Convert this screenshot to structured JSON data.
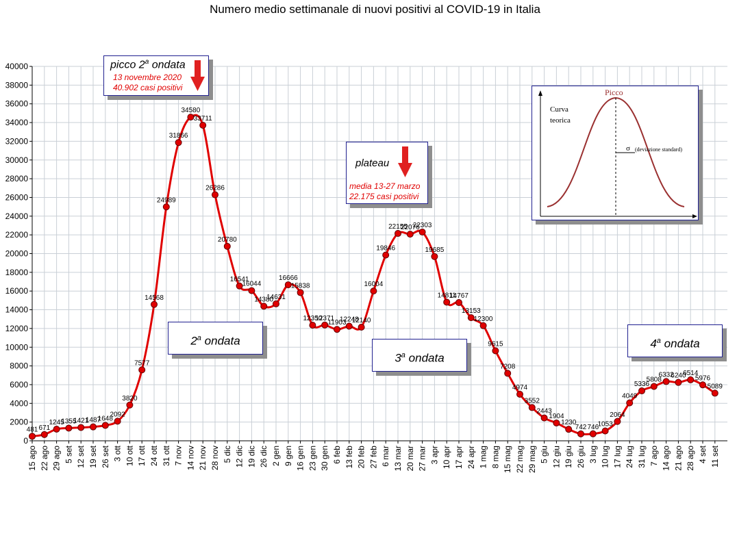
{
  "chart_data": {
    "type": "line",
    "title": "Numero medio settimanale di nuovi positivi al COVID-19 in Italia",
    "xlabel": "",
    "ylabel": "",
    "ylim": [
      0,
      40000
    ],
    "yticks": [
      0,
      2000,
      4000,
      6000,
      8000,
      10000,
      12000,
      14000,
      16000,
      18000,
      20000,
      22000,
      24000,
      26000,
      28000,
      30000,
      32000,
      34000,
      36000,
      38000,
      40000
    ],
    "grid": true,
    "series_color": "#e00000",
    "marker_color": "#e00000",
    "categories": [
      "15 ago",
      "22 ago",
      "29 ago",
      "5 set",
      "12 set",
      "19 set",
      "26 set",
      "3 ott",
      "10 ott",
      "17 ott",
      "24 ott",
      "31 ott",
      "7 nov",
      "14 nov",
      "21 nov",
      "28 nov",
      "5 dic",
      "12 dic",
      "19 dic",
      "26 dic",
      "2 gen",
      "9 gen",
      "16 gen",
      "23 gen",
      "30 gen",
      "6 feb",
      "13 feb",
      "20 feb",
      "27 feb",
      "6 mar",
      "13 mar",
      "20 mar",
      "27 mar",
      "3 apr",
      "10 apr",
      "17 apr",
      "24 apr",
      "1 mag",
      "8 mag",
      "15 mag",
      "22 mag",
      "29 mag",
      "5 giu",
      "12 giu",
      "19 giu",
      "26 giu",
      "3 lug",
      "10 lug",
      "17 lug",
      "24 lug",
      "31 lug",
      "7 ago",
      "14 ago",
      "21 ago",
      "28 ago",
      "4 set",
      "11 set"
    ],
    "values": [
      481,
      671,
      1245,
      1355,
      1421,
      1487,
      1648,
      2092,
      3820,
      7577,
      14568,
      24989,
      31866,
      34580,
      33711,
      26286,
      20780,
      16541,
      16044,
      14380,
      14631,
      16666,
      15838,
      12350,
      12371,
      11903,
      12248,
      12140,
      16004,
      19846,
      22155,
      22076,
      22303,
      19685,
      14811,
      14767,
      13153,
      12300,
      9615,
      7208,
      4974,
      3552,
      2443,
      1904,
      1230,
      742,
      746,
      1053,
      2064,
      4049,
      5336,
      5808,
      6332,
      6240,
      6514,
      5976,
      5089
    ]
  },
  "annotations": {
    "peak_title": "picco 2",
    "peak_title_sup": "a",
    "peak_title_rest": " ondata",
    "peak_date": "13 novembre 2020",
    "peak_cases": "40.902 casi positivi",
    "plateau_title": "plateau",
    "plateau_range": "media 13-27 marzo",
    "plateau_cases": "22.175 casi positivi",
    "wave2_num": "2",
    "wave3_num": "3",
    "wave4_num": "4",
    "wave_sup": "a",
    "wave_word": "ondata"
  },
  "inset": {
    "peak_label": "Picco",
    "curve_label_1": "Curva",
    "curve_label_2": "teorica",
    "sigma": "σ",
    "sigma_label": "(deviazione standard)"
  }
}
